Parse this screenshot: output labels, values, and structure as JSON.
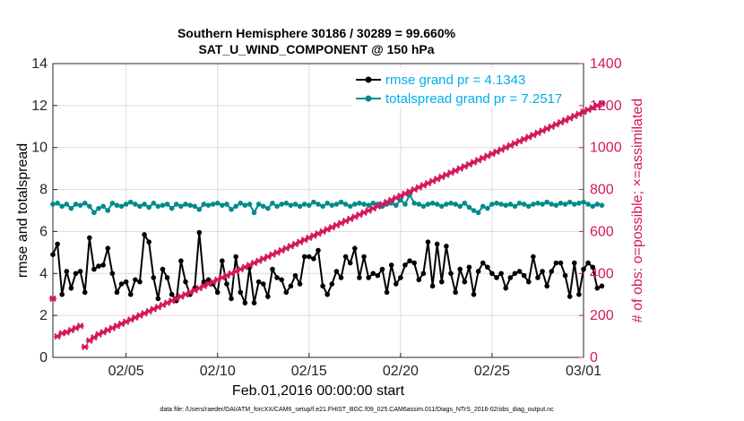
{
  "chart_data": {
    "type": "line",
    "title": "Southern Hemisphere 30186 / 30289 = 99.660%",
    "subtitle": "SAT_U_WIND_COMPONENT @ 150 hPa",
    "xlabel": "Feb.01,2016 00:00:00 start",
    "ylabel": "rmse and totalspread",
    "y2label": "# of obs: o=possible; ×=assimilated",
    "xlim": [
      1,
      30
    ],
    "ylim": [
      0,
      14
    ],
    "y2lim": [
      0,
      1400
    ],
    "x_ticks": [
      5,
      10,
      15,
      20,
      25,
      30
    ],
    "x_tick_labels": [
      "02/05",
      "02/10",
      "02/15",
      "02/20",
      "02/25",
      "03/01"
    ],
    "y_ticks": [
      0,
      2,
      4,
      6,
      8,
      10,
      12,
      14
    ],
    "y_tick_labels": [
      "0",
      "2",
      "4",
      "6",
      "8",
      "10",
      "12",
      "14"
    ],
    "y2_ticks": [
      0,
      200,
      400,
      600,
      800,
      1000,
      1200,
      1400
    ],
    "y2_tick_labels": [
      "0",
      "200",
      "400",
      "600",
      "800",
      "1000",
      "1200",
      "1400"
    ],
    "x_step": 0.25,
    "series": [
      {
        "name": "rmse grand pr = 4.1343",
        "color": "#000000",
        "axis": "left",
        "values": [
          4.9,
          5.4,
          3.0,
          4.1,
          3.3,
          4.0,
          4.1,
          3.1,
          5.7,
          4.2,
          4.35,
          4.4,
          5.2,
          4.0,
          3.1,
          3.5,
          3.6,
          3.0,
          3.7,
          3.6,
          5.85,
          5.5,
          3.8,
          2.8,
          4.2,
          3.8,
          3.0,
          2.7,
          4.6,
          3.6,
          3.0,
          3.3,
          5.95,
          3.6,
          3.7,
          3.5,
          3.1,
          4.6,
          3.5,
          2.8,
          4.8,
          3.1,
          2.6,
          4.3,
          2.6,
          3.6,
          3.5,
          2.9,
          4.2,
          3.8,
          3.7,
          3.1,
          3.4,
          3.9,
          3.5,
          4.8,
          4.8,
          4.7,
          5.1,
          3.4,
          3.0,
          3.5,
          4.1,
          3.8,
          4.8,
          4.5,
          5.2,
          3.8,
          4.8,
          3.8,
          4.0,
          3.9,
          4.2,
          3.1,
          4.4,
          3.5,
          3.8,
          4.4,
          4.6,
          4.5,
          3.7,
          4.0,
          5.5,
          3.4,
          5.4,
          3.6,
          5.3,
          4.0,
          3.1,
          4.2,
          3.6,
          4.3,
          3.0,
          4.1,
          4.5,
          4.3,
          4.0,
          3.8,
          4.0,
          3.3,
          3.8,
          4.0,
          4.1,
          3.9,
          3.6,
          4.8,
          3.8,
          4.1,
          3.4,
          4.1,
          4.5,
          4.5,
          3.9,
          2.9,
          4.5,
          3.0,
          4.2,
          4.5,
          4.3,
          3.3,
          3.4
        ]
      },
      {
        "name": "totalspread grand pr = 7.2517",
        "color": "#008b8b",
        "axis": "left",
        "values": [
          7.3,
          7.35,
          7.2,
          7.3,
          7.1,
          7.3,
          7.25,
          7.35,
          7.2,
          6.9,
          7.1,
          7.2,
          7.0,
          7.35,
          7.25,
          7.2,
          7.3,
          7.4,
          7.3,
          7.2,
          7.3,
          7.15,
          7.35,
          7.2,
          7.25,
          7.3,
          7.1,
          7.3,
          7.2,
          7.3,
          7.25,
          7.2,
          7.05,
          7.3,
          7.25,
          7.3,
          7.35,
          7.25,
          7.3,
          7.05,
          7.2,
          7.35,
          7.25,
          7.3,
          6.9,
          7.3,
          7.2,
          7.1,
          7.35,
          7.2,
          7.3,
          7.35,
          7.25,
          7.3,
          7.2,
          7.3,
          7.25,
          7.4,
          7.3,
          7.2,
          7.35,
          7.25,
          7.3,
          7.4,
          7.3,
          7.2,
          7.3,
          7.35,
          7.3,
          7.25,
          7.35,
          7.3,
          7.2,
          7.3,
          7.35,
          7.25,
          7.5,
          7.3,
          7.75,
          7.35,
          7.3,
          7.2,
          7.3,
          7.35,
          7.3,
          7.2,
          7.3,
          7.35,
          7.3,
          7.2,
          7.35,
          7.15,
          7.0,
          6.9,
          7.2,
          7.1,
          7.3,
          7.35,
          7.3,
          7.25,
          7.3,
          7.2,
          7.35,
          7.3,
          7.2,
          7.3,
          7.35,
          7.3,
          7.4,
          7.3,
          7.25,
          7.35,
          7.3,
          7.4,
          7.3,
          7.35,
          7.4,
          7.3,
          7.2,
          7.3,
          7.25
        ]
      },
      {
        "name": "obs assimilated",
        "color": "#d3175e",
        "axis": "right",
        "marker_only": true,
        "values": [
          280,
          100,
          115,
          120,
          130,
          140,
          150,
          50,
          80,
          95,
          110,
          120,
          130,
          140,
          150,
          160,
          170,
          180,
          190,
          200,
          210,
          220,
          230,
          240,
          250,
          260,
          270,
          280,
          290,
          300,
          310,
          320,
          330,
          340,
          350,
          360,
          370,
          380,
          390,
          400,
          410,
          420,
          430,
          440,
          450,
          460,
          470,
          480,
          490,
          500,
          510,
          520,
          530,
          540,
          550,
          560,
          570,
          580,
          590,
          600,
          610,
          620,
          630,
          640,
          650,
          660,
          670,
          680,
          690,
          700,
          710,
          720,
          730,
          740,
          750,
          760,
          770,
          780,
          790,
          800,
          810,
          820,
          830,
          840,
          850,
          860,
          870,
          880,
          890,
          900,
          910,
          920,
          930,
          940,
          950,
          960,
          970,
          980,
          990,
          1000,
          1010,
          1020,
          1030,
          1040,
          1050,
          1060,
          1070,
          1080,
          1090,
          1100,
          1110,
          1120,
          1130,
          1140,
          1150,
          1160,
          1170,
          1180,
          1190,
          1200,
          1210
        ]
      }
    ],
    "legend_position": "top-right",
    "grid": true
  },
  "footer": "data file: /Users/raeder/DAI/ATM_forcXX/CAM6_setup/f.e21.FHIST_BGC.f09_025.CAM6assim.011/Diags_NTrS_2016-02/obs_diag_output.nc"
}
